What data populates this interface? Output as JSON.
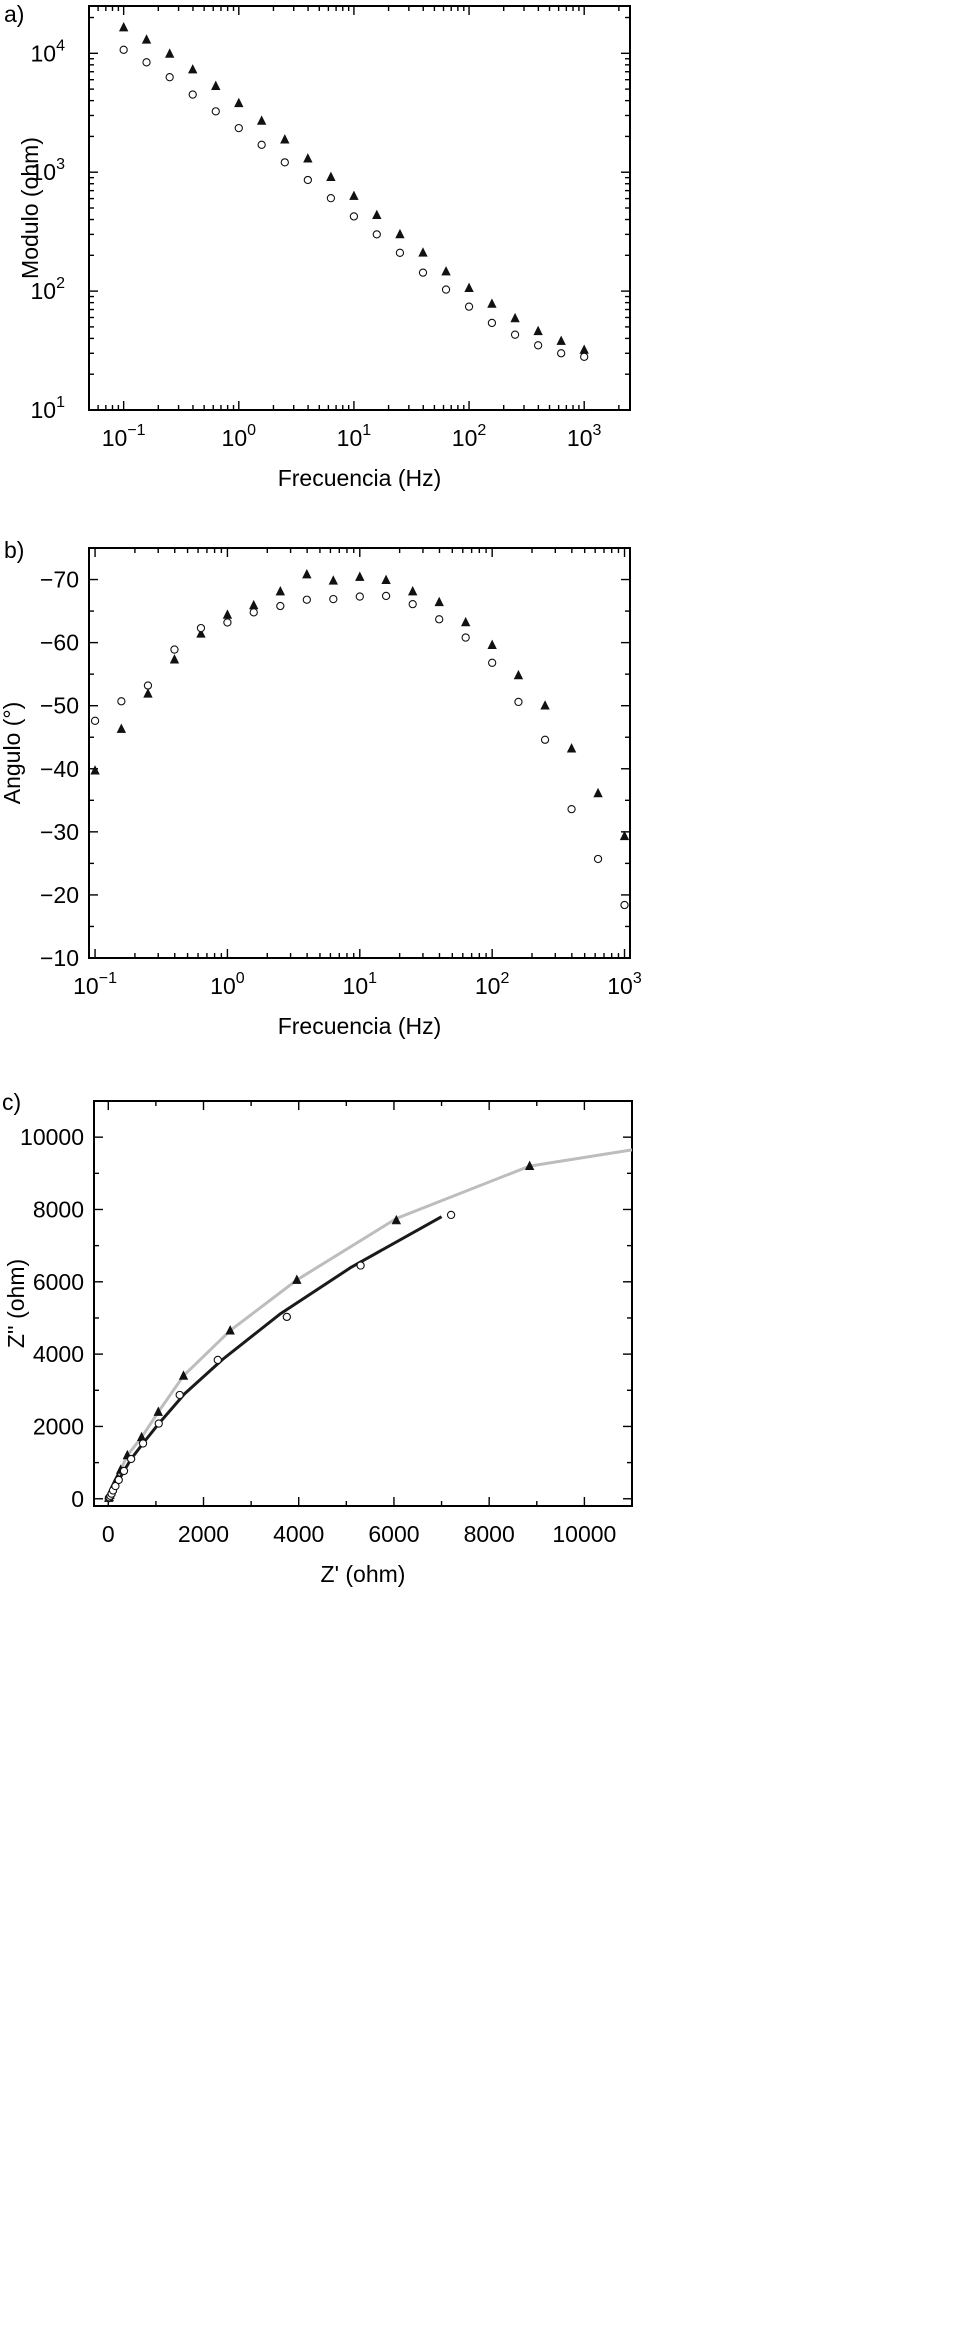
{
  "chart_data": [
    {
      "type": "scatter",
      "panel_label": "a)",
      "xlabel": "Frecuencia (Hz)",
      "ylabel": "Modulo (ohm)",
      "xscale": "log",
      "yscale": "log",
      "xlim": [
        0.05,
        2500
      ],
      "ylim": [
        10,
        25000
      ],
      "x_ticks": [
        {
          "value": 0.1,
          "base": "10",
          "exp": "−1"
        },
        {
          "value": 1,
          "base": "10",
          "exp": "0"
        },
        {
          "value": 10,
          "base": "10",
          "exp": "1"
        },
        {
          "value": 100,
          "base": "10",
          "exp": "2"
        },
        {
          "value": 1000,
          "base": "10",
          "exp": "3"
        }
      ],
      "y_ticks": [
        {
          "value": 10,
          "base": "10",
          "exp": "1"
        },
        {
          "value": 100,
          "base": "10",
          "exp": "2"
        },
        {
          "value": 1000,
          "base": "10",
          "exp": "3"
        },
        {
          "value": 10000,
          "base": "10",
          "exp": "4"
        }
      ],
      "grid": false,
      "series": [
        {
          "marker": "triangle-filled",
          "x": [
            0.1,
            0.158,
            0.251,
            0.398,
            0.631,
            1,
            1.58,
            2.51,
            3.98,
            6.31,
            10,
            15.8,
            25.1,
            39.8,
            63.1,
            100,
            158,
            251,
            398,
            631,
            1000
          ],
          "y": [
            16500,
            13000,
            9900,
            7300,
            5300,
            3800,
            2700,
            1880,
            1300,
            910,
            630,
            435,
            300,
            210,
            146,
            106,
            78,
            59,
            46,
            38,
            32
          ]
        },
        {
          "marker": "circle-open",
          "x": [
            0.1,
            0.158,
            0.251,
            0.398,
            0.631,
            1,
            1.58,
            2.51,
            3.98,
            6.31,
            10,
            15.8,
            25.1,
            39.8,
            63.1,
            100,
            158,
            251,
            398,
            631,
            1000
          ],
          "y": [
            10700,
            8400,
            6300,
            4500,
            3250,
            2350,
            1700,
            1210,
            860,
            605,
            425,
            300,
            210,
            143,
            103,
            74,
            54,
            43,
            35,
            30,
            28
          ]
        }
      ]
    },
    {
      "type": "scatter",
      "panel_label": "b)",
      "xlabel": "Frecuencia (Hz)",
      "ylabel": "Angulo (°)",
      "xscale": "log",
      "xlim": [
        0.09,
        1100
      ],
      "ylim": [
        -10,
        -75
      ],
      "x_ticks": [
        {
          "value": 0.1,
          "base": "10",
          "exp": "−1"
        },
        {
          "value": 1,
          "base": "10",
          "exp": "0"
        },
        {
          "value": 10,
          "base": "10",
          "exp": "1"
        },
        {
          "value": 100,
          "base": "10",
          "exp": "2"
        },
        {
          "value": 1000,
          "base": "10",
          "exp": "3"
        }
      ],
      "y_ticks": [
        {
          "value": -10,
          "label": "−10"
        },
        {
          "value": -20,
          "label": "−20"
        },
        {
          "value": -30,
          "label": "−30"
        },
        {
          "value": -40,
          "label": "−40"
        },
        {
          "value": -50,
          "label": "−50"
        },
        {
          "value": -60,
          "label": "−60"
        },
        {
          "value": -70,
          "label": "−70"
        }
      ],
      "grid": false,
      "series": [
        {
          "marker": "triangle-filled",
          "x": [
            0.1,
            0.158,
            0.251,
            0.398,
            0.631,
            1,
            1.58,
            2.51,
            3.98,
            6.31,
            10,
            15.8,
            25.1,
            39.8,
            63.1,
            100,
            158,
            251,
            398,
            631,
            1000
          ],
          "y": [
            -39.7,
            -46.3,
            -51.9,
            -57.3,
            -61.4,
            -64.4,
            -65.9,
            -68.1,
            -70.8,
            -69.8,
            -70.4,
            -69.9,
            -68.1,
            -66.4,
            -63.2,
            -59.6,
            -54.8,
            -50.0,
            -43.2,
            -36.1,
            -29.3
          ]
        },
        {
          "marker": "circle-open",
          "x": [
            0.1,
            0.158,
            0.251,
            0.398,
            0.631,
            1,
            1.58,
            2.51,
            3.98,
            6.31,
            10,
            15.8,
            25.1,
            39.8,
            63.1,
            100,
            158,
            251,
            398,
            631,
            1000
          ],
          "y": [
            -47.6,
            -50.7,
            -53.2,
            -58.9,
            -62.3,
            -63.2,
            -64.8,
            -65.8,
            -66.8,
            -66.9,
            -67.3,
            -67.4,
            -66.1,
            -63.7,
            -60.8,
            -56.8,
            -50.6,
            -44.6,
            -33.6,
            -25.7,
            -18.4
          ]
        }
      ]
    },
    {
      "type": "scatter",
      "panel_label": "c)",
      "xlabel": "Z' (ohm)",
      "ylabel": "Z'' (ohm)",
      "xlim": [
        -300,
        11000
      ],
      "ylim": [
        -200,
        11000
      ],
      "x_ticks": [
        0,
        2000,
        4000,
        6000,
        8000,
        10000
      ],
      "y_ticks": [
        0,
        2000,
        4000,
        6000,
        8000,
        10000
      ],
      "grid": false,
      "series": [
        {
          "marker": "triangle-filled",
          "line_color": "#bdbdbd",
          "x": [
            10,
            20,
            35,
            55,
            85,
            130,
            190,
            260,
            400,
            700,
            1050,
            1580,
            2560,
            3960,
            6050,
            8850
          ],
          "y": [
            20,
            50,
            100,
            180,
            280,
            410,
            570,
            800,
            1200,
            1700,
            2400,
            3400,
            4650,
            6050,
            7700,
            9200
          ],
          "line_x": [
            10,
            20,
            35,
            55,
            85,
            130,
            190,
            260,
            400,
            700,
            1050,
            1580,
            2560,
            3960,
            6050,
            8850,
            11000
          ],
          "line_y": [
            20,
            50,
            100,
            180,
            280,
            410,
            570,
            800,
            1200,
            1700,
            2400,
            3400,
            4650,
            6050,
            7750,
            9200,
            9650
          ]
        },
        {
          "marker": "circle-open",
          "line_color": "#1a1a1a",
          "x": [
            10,
            25,
            45,
            70,
            100,
            150,
            220,
            330,
            480,
            730,
            1060,
            1500,
            2300,
            3750,
            5300,
            7200
          ],
          "y": [
            15,
            40,
            80,
            140,
            230,
            350,
            520,
            770,
            1100,
            1530,
            2080,
            2870,
            3840,
            5030,
            6450,
            7850
          ],
          "line_x": [
            10,
            25,
            45,
            70,
            100,
            150,
            220,
            330,
            480,
            730,
            1060,
            1600,
            2400,
            3600,
            5100,
            7000
          ],
          "line_y": [
            15,
            40,
            80,
            140,
            230,
            350,
            520,
            770,
            1100,
            1530,
            2080,
            2900,
            3850,
            5100,
            6400,
            7800
          ]
        }
      ]
    }
  ]
}
